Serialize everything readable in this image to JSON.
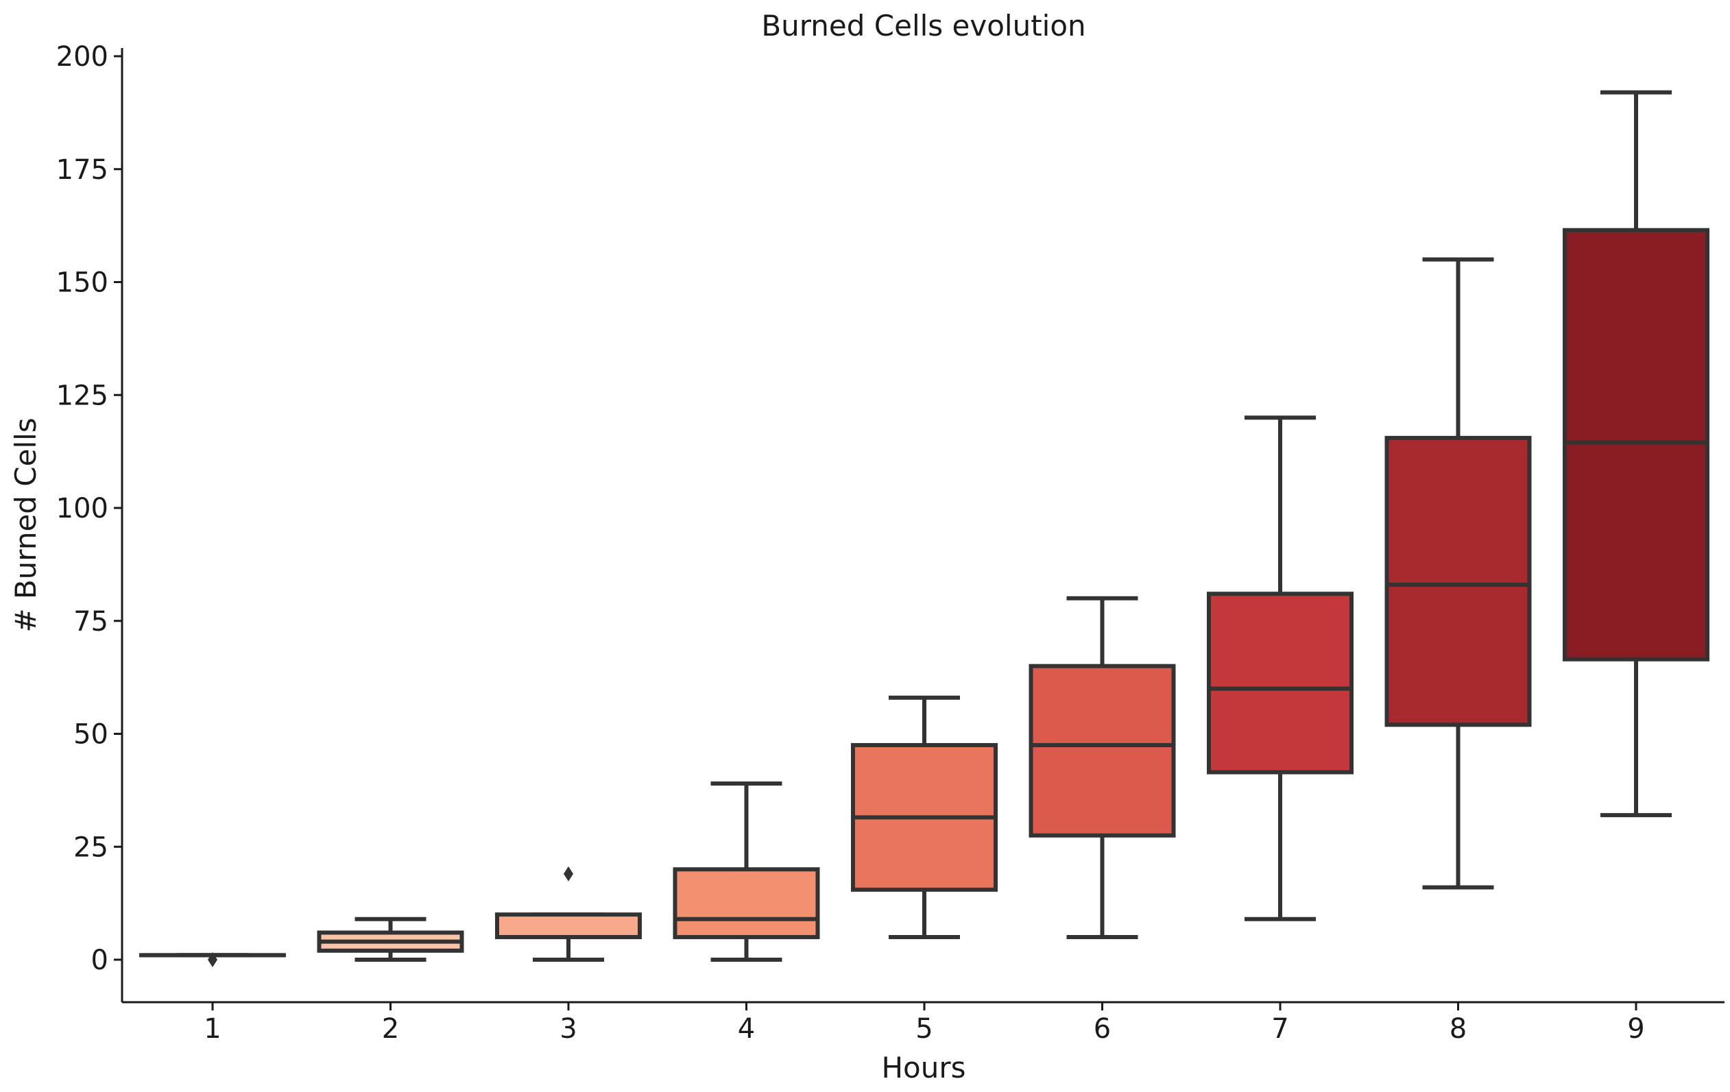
{
  "chart_data": {
    "type": "box",
    "title": "Burned Cells evolution",
    "xlabel": "Hours",
    "ylabel": "# Burned Cells",
    "ylim": [
      -10,
      202
    ],
    "yticks": [
      0,
      25,
      50,
      75,
      100,
      125,
      150,
      175,
      200
    ],
    "categories": [
      "1",
      "2",
      "3",
      "4",
      "5",
      "6",
      "7",
      "8",
      "9"
    ],
    "boxes": [
      {
        "category": "1",
        "whislo": 1,
        "q1": 1,
        "med": 1,
        "q3": 1,
        "whishi": 1,
        "fliers": [
          0
        ],
        "color": "#fee0d2"
      },
      {
        "category": "2",
        "whislo": 0,
        "q1": 2,
        "med": 4,
        "q3": 6,
        "whishi": 9,
        "fliers": [],
        "color": "#fcc3ab"
      },
      {
        "category": "3",
        "whislo": 0,
        "q1": 5,
        "med": 5,
        "q3": 10,
        "whishi": 10,
        "fliers": [
          19
        ],
        "color": "#f9a98b"
      },
      {
        "category": "4",
        "whislo": 0,
        "q1": 5,
        "med": 9,
        "q3": 20,
        "whishi": 39,
        "fliers": [],
        "color": "#f3906f"
      },
      {
        "category": "5",
        "whislo": 5,
        "q1": 15.5,
        "med": 31.5,
        "q3": 47.5,
        "whishi": 58,
        "fliers": [],
        "color": "#e9765c"
      },
      {
        "category": "6",
        "whislo": 5,
        "q1": 27.5,
        "med": 47.5,
        "q3": 65,
        "whishi": 80,
        "fliers": [],
        "color": "#dc5a4b"
      },
      {
        "category": "7",
        "whislo": 9,
        "q1": 41.5,
        "med": 60,
        "q3": 81,
        "whishi": 120,
        "fliers": [],
        "color": "#c4373a"
      },
      {
        "category": "8",
        "whislo": 16,
        "q1": 52,
        "med": 83,
        "q3": 115.5,
        "whishi": 155,
        "fliers": [],
        "color": "#a82a2f"
      },
      {
        "category": "9",
        "whislo": 32,
        "q1": 66.5,
        "med": 114.5,
        "q3": 161.5,
        "whishi": 192,
        "fliers": [],
        "color": "#8a1d23"
      }
    ],
    "grid": false,
    "legend": "none"
  }
}
